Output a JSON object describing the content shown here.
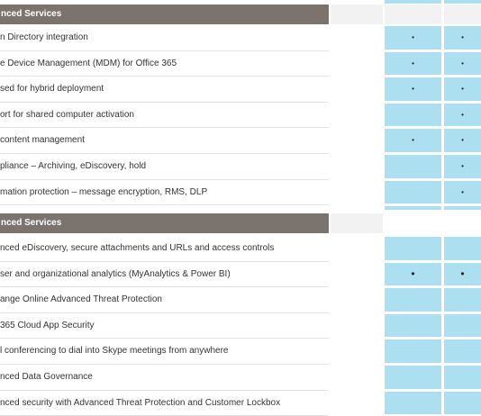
{
  "sections": [
    {
      "title": "nced Services",
      "rows": [
        [
          "n Directory integration",
          "•",
          "•"
        ],
        [
          "e Device Management (MDM) for Office 365",
          "•",
          "•"
        ],
        [
          "sed for hybrid deployment",
          "•",
          "•"
        ],
        [
          "ort for shared computer activation",
          null,
          "•"
        ],
        [
          " content management",
          "•",
          "•"
        ],
        [
          "pliance – Archiving, eDiscovery, hold",
          null,
          "•"
        ],
        [
          "mation protection – message encryption, RMS, DLP",
          null,
          "•"
        ]
      ]
    },
    {
      "title": "nced Services",
      "rows": [
        [
          "nced eDiscovery, secure attachments and URLs and access controls",
          null,
          null
        ],
        [
          "ser and organizational analytics (MyAnalytics & Power BI)",
          "•",
          "•"
        ],
        [
          "ange Online Advanced Threat Protection",
          null,
          null
        ],
        [
          " 365 Cloud App Security",
          null,
          null
        ],
        [
          "l conferencing to dial into Skype meetings from anywhere",
          null,
          null
        ],
        [
          "nced Data Governance",
          null,
          null
        ],
        [
          "nced security with Advanced Threat Protection and Customer Lockbox",
          null,
          null
        ]
      ]
    }
  ]
}
